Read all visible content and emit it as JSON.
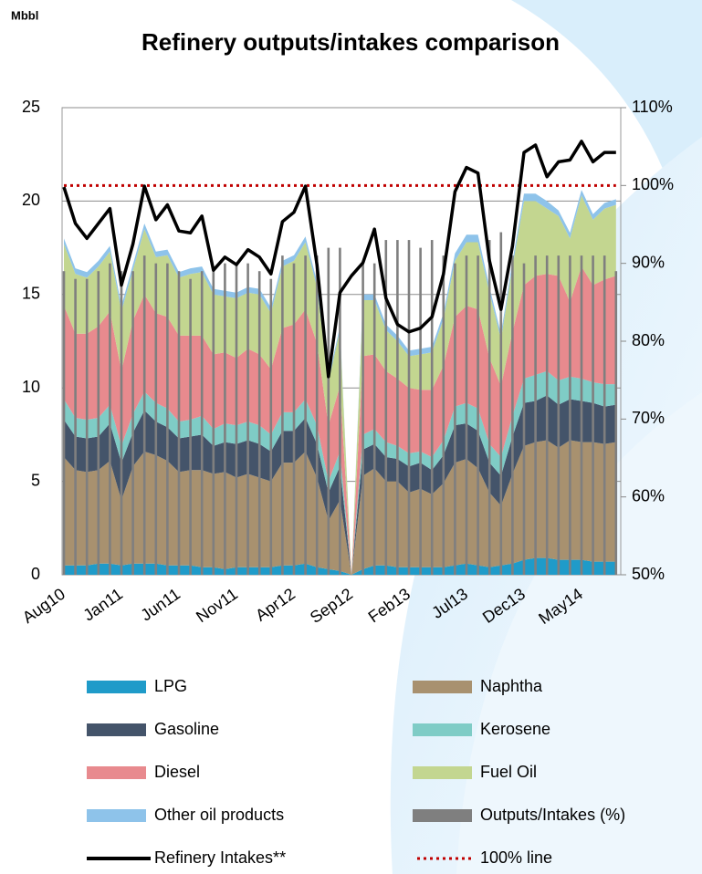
{
  "chart_data": {
    "type": "area",
    "title": "Refinery outputs/intakes comparison",
    "y_label": "Mbbl",
    "categories": [
      "Aug10",
      null,
      null,
      null,
      null,
      "Jan11",
      null,
      null,
      null,
      null,
      "Jun11",
      null,
      null,
      null,
      null,
      "Nov11",
      null,
      null,
      null,
      null,
      "Apr12",
      null,
      null,
      null,
      null,
      "Sep12",
      null,
      null,
      null,
      null,
      "Feb13",
      null,
      null,
      null,
      null,
      "Jul13",
      null,
      null,
      null,
      null,
      "Dec13",
      null,
      null,
      null,
      null,
      "May14",
      null,
      null,
      null
    ],
    "ylim": [
      0,
      25
    ],
    "yticks": [
      0,
      5,
      10,
      15,
      20,
      25
    ],
    "y2lim": [
      50,
      110
    ],
    "y2ticks": [
      {
        "value": 50,
        "label": "50%"
      },
      {
        "value": 60,
        "label": "60%"
      },
      {
        "value": 70,
        "label": "70%"
      },
      {
        "value": 80,
        "label": "80%"
      },
      {
        "value": 90,
        "label": "90%"
      },
      {
        "value": 100,
        "label": "100%"
      },
      {
        "value": 110,
        "label": "110%"
      }
    ],
    "grid": true,
    "series": [
      {
        "name": "LPG",
        "type": "area",
        "color": "#1f9bc9",
        "values": [
          0.5,
          0.5,
          0.5,
          0.6,
          0.6,
          0.5,
          0.6,
          0.6,
          0.6,
          0.5,
          0.5,
          0.5,
          0.4,
          0.4,
          0.3,
          0.4,
          0.4,
          0.4,
          0.4,
          0.5,
          0.5,
          0.6,
          0.4,
          0.3,
          0.2,
          0,
          0.3,
          0.5,
          0.5,
          0.4,
          0.4,
          0.4,
          0.4,
          0.4,
          0.5,
          0.6,
          0.5,
          0.4,
          0.5,
          0.6,
          0.8,
          0.9,
          0.9,
          0.8,
          0.8,
          0.8,
          0.7,
          0.7,
          0.7
        ]
      },
      {
        "name": "Naphtha",
        "type": "area",
        "color": "#a8916f",
        "values": [
          5.8,
          5.1,
          5.0,
          5.0,
          5.5,
          3.5,
          5.2,
          6.0,
          5.8,
          5.6,
          5.0,
          5.1,
          5.2,
          5.0,
          5.2,
          4.8,
          5.0,
          4.8,
          4.6,
          5.5,
          5.5,
          6.0,
          4.8,
          2.6,
          3.8,
          0,
          5.0,
          5.2,
          4.5,
          4.6,
          4.0,
          4.2,
          3.9,
          4.5,
          5.5,
          5.6,
          5.2,
          4.0,
          3.2,
          4.8,
          6.1,
          6.2,
          6.3,
          6.0,
          6.4,
          6.3,
          6.4,
          6.3,
          6.4
        ]
      },
      {
        "name": "Gasoline",
        "type": "area",
        "color": "#44546a",
        "values": [
          2.0,
          1.8,
          1.8,
          1.8,
          2.0,
          2.0,
          1.8,
          2.2,
          1.8,
          1.8,
          1.8,
          1.8,
          1.9,
          1.5,
          1.6,
          1.8,
          1.8,
          1.8,
          1.6,
          1.7,
          1.7,
          1.8,
          1.8,
          1.5,
          1.8,
          0,
          1.4,
          1.3,
          1.3,
          1.2,
          1.4,
          1.4,
          1.3,
          1.5,
          2.0,
          1.9,
          2.0,
          1.6,
          1.6,
          2.0,
          2.3,
          2.2,
          2.4,
          2.3,
          2.2,
          2.2,
          2.1,
          2.0,
          2.0
        ]
      },
      {
        "name": "Kerosene",
        "type": "area",
        "color": "#7fccc6",
        "values": [
          1.1,
          1.0,
          1.0,
          1.0,
          1.0,
          0.9,
          1.0,
          1.0,
          1.0,
          1.0,
          0.9,
          0.9,
          1.0,
          0.9,
          1.0,
          1.0,
          1.0,
          1.0,
          0.9,
          1.0,
          1.0,
          1.0,
          1.0,
          0.6,
          0.8,
          0,
          0.8,
          0.8,
          0.8,
          0.7,
          0.7,
          0.6,
          0.7,
          0.8,
          1.0,
          1.1,
          1.2,
          1.0,
          1.0,
          1.1,
          1.3,
          1.4,
          1.3,
          1.3,
          1.2,
          1.2,
          1.1,
          1.2,
          1.1
        ]
      },
      {
        "name": "Diesel",
        "type": "area",
        "color": "#e88a8e",
        "values": [
          5.0,
          4.5,
          4.6,
          4.9,
          5.0,
          4.0,
          5.0,
          5.2,
          4.8,
          4.9,
          4.6,
          4.5,
          4.3,
          4.0,
          3.8,
          3.6,
          3.9,
          3.8,
          3.5,
          4.5,
          4.7,
          4.8,
          4.4,
          3.0,
          3.5,
          0,
          4.2,
          4.0,
          3.8,
          3.6,
          3.5,
          3.3,
          3.6,
          4.0,
          4.8,
          5.2,
          5.3,
          4.6,
          3.8,
          4.5,
          5.0,
          5.3,
          5.2,
          5.6,
          4.0,
          6.0,
          5.2,
          5.6,
          5.8
        ]
      },
      {
        "name": "Fuel Oil",
        "type": "area",
        "color": "#c3d690",
        "values": [
          3.3,
          3.2,
          3.0,
          3.2,
          3.2,
          3.2,
          2.7,
          3.5,
          3.0,
          3.3,
          3.1,
          3.3,
          3.4,
          3.2,
          3.0,
          3.2,
          3.0,
          3.2,
          3.0,
          3.3,
          3.4,
          3.6,
          3.0,
          2.3,
          3.0,
          0,
          3.0,
          2.9,
          2.2,
          2.0,
          1.7,
          1.9,
          2.0,
          2.5,
          3.0,
          3.4,
          3.6,
          3.5,
          2.5,
          3.5,
          4.5,
          4.0,
          3.5,
          3.2,
          3.4,
          3.8,
          3.5,
          3.8,
          3.8
        ]
      },
      {
        "name": "Other oil products",
        "type": "area",
        "color": "#8ec3ea",
        "values": [
          0.3,
          0.3,
          0.3,
          0.3,
          0.3,
          0.3,
          0.3,
          0.3,
          0.3,
          0.3,
          0.3,
          0.3,
          0.3,
          0.3,
          0.3,
          0.3,
          0.3,
          0.3,
          0.3,
          0.3,
          0.3,
          0.3,
          0.3,
          0.2,
          0.2,
          0,
          0.3,
          0.3,
          0.3,
          0.3,
          0.3,
          0.3,
          0.3,
          0.3,
          0.4,
          0.4,
          0.4,
          0.3,
          0.3,
          0.3,
          0.4,
          0.4,
          0.4,
          0.3,
          0.3,
          0.3,
          0.3,
          0.3,
          0.3
        ]
      },
      {
        "name": "Outputs/Intakes (%)",
        "type": "bar",
        "axis": "y2",
        "color": "#7f7f7f",
        "values": [
          89,
          88,
          88,
          89,
          90,
          89,
          89,
          91,
          90,
          90,
          89,
          88,
          89,
          89,
          90,
          90,
          90,
          89,
          88,
          91,
          90,
          91,
          91,
          92,
          92,
          null,
          90,
          90,
          93,
          93,
          93,
          92,
          93,
          91,
          90,
          91,
          91,
          93,
          94,
          91,
          90,
          91,
          91,
          91,
          91,
          91,
          91,
          91,
          89
        ]
      },
      {
        "name": "Refinery Intakes**",
        "type": "line",
        "color": "#000000",
        "values": [
          20.75,
          18.8,
          18.0,
          18.8,
          19.6,
          15.5,
          17.7,
          20.8,
          19.0,
          19.8,
          18.4,
          18.3,
          19.2,
          16.3,
          17.0,
          16.6,
          17.4,
          17.0,
          16.1,
          18.9,
          19.4,
          20.8,
          16.6,
          10.6,
          15.1,
          16.0,
          16.7,
          18.5,
          14.8,
          13.4,
          13.0,
          13.2,
          13.8,
          16.1,
          20.5,
          21.8,
          21.5,
          16.8,
          14.2,
          17.6,
          22.6,
          23.0,
          21.3,
          22.1,
          22.2,
          23.2,
          22.1,
          22.6,
          22.6
        ]
      }
    ],
    "reference": {
      "name": "100% line",
      "value": 100,
      "axis": "y2",
      "color": "#c00000"
    }
  }
}
